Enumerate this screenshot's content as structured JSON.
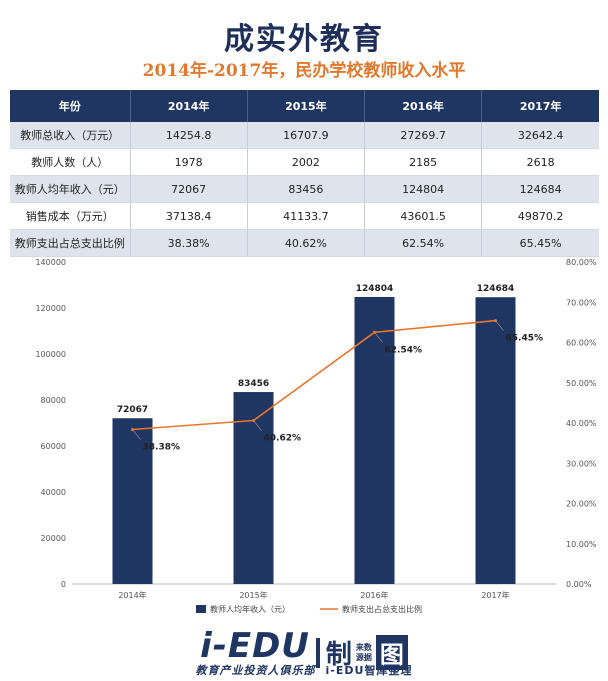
{
  "title": "成实外教育",
  "subtitle": "2014年-2017年，民办学校教师收入水平",
  "table": {
    "headers": [
      "年份",
      "2014年",
      "2015年",
      "2016年",
      "2017年"
    ],
    "rows": [
      [
        "教师总收入（万元）",
        "14254.8",
        "16707.9",
        "27269.7",
        "32642.4"
      ],
      [
        "教师人数（人）",
        "1978",
        "2002",
        "2185",
        "2618"
      ],
      [
        "教师人均年收入（元）",
        "72067",
        "83456",
        "124804",
        "124684"
      ],
      [
        "销售成本（万元）",
        "37138.4",
        "41133.7",
        "43601.5",
        "49870.2"
      ],
      [
        "教师支出占总支出比例",
        "38.38%",
        "40.62%",
        "62.54%",
        "65.45%"
      ]
    ]
  },
  "chart_data": {
    "type": "bar",
    "categories": [
      "2014年",
      "2015年",
      "2016年",
      "2017年"
    ],
    "series": [
      {
        "name": "教师人均年收入（元）",
        "type": "bar",
        "axis": "left",
        "values": [
          72067,
          83456,
          124804,
          124684
        ],
        "labels": [
          "72067",
          "83456",
          "124804",
          "124684"
        ]
      },
      {
        "name": "教师支出占总支出比例",
        "type": "line",
        "axis": "right",
        "values": [
          38.38,
          40.62,
          62.54,
          65.45
        ],
        "labels": [
          "38.38%",
          "40.62%",
          "62.54%",
          "65.45%"
        ]
      }
    ],
    "y_left": {
      "ylim": [
        0,
        140000
      ],
      "ticks": [
        "0",
        "20000",
        "40000",
        "60000",
        "80000",
        "100000",
        "120000",
        "140000"
      ]
    },
    "y_right": {
      "ylim": [
        0,
        80
      ],
      "ticks": [
        "0.00%",
        "10.00%",
        "20.00%",
        "30.00%",
        "40.00%",
        "50.00%",
        "60.00%",
        "70.00%",
        "80.00%"
      ]
    },
    "legend_position": "bottom",
    "colors": {
      "bar": "#1f3562",
      "line": "#e8772e"
    }
  },
  "footer": {
    "logo": "i-EDU",
    "logo_zhi": "制",
    "logo_small_top": "来数",
    "logo_small_bottom": "源据",
    "logo_tu": "图",
    "sub_left": "教育产业投资人俱乐部",
    "sub_right": "i-EDU智库整理"
  }
}
